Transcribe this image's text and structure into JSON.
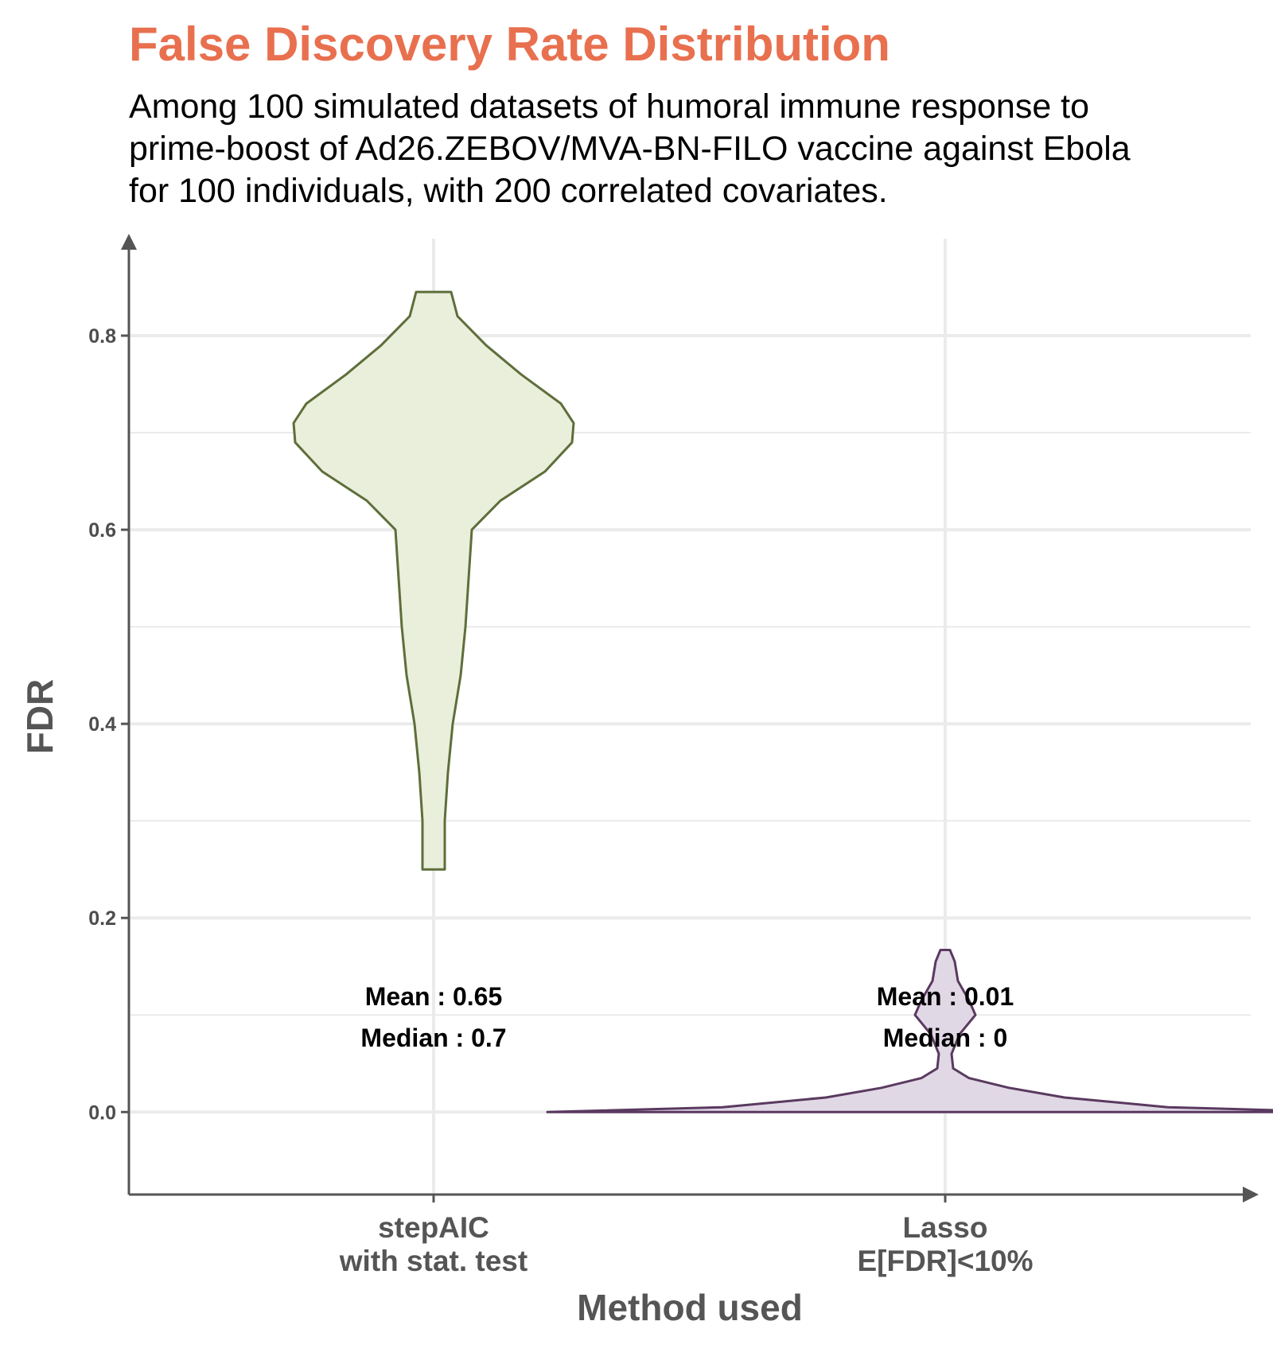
{
  "chart_data": {
    "type": "violin",
    "title": "False Discovery Rate Distribution",
    "subtitle_lines": [
      "Among 100 simulated datasets of humoral immune response to",
      "prime-boost of Ad26.ZEBOV/MVA-BN-FILO vaccine against Ebola",
      "for 100 individuals, with 200 correlated covariates."
    ],
    "xlabel": "Method used",
    "ylabel": "FDR",
    "ylim": [
      -0.085,
      0.9
    ],
    "yticks": [
      0.0,
      0.2,
      0.4,
      0.6,
      0.8
    ],
    "ytick_labels": [
      "0.0",
      "0.2",
      "0.4",
      "0.6",
      "0.8"
    ],
    "grid": true,
    "categories": [
      {
        "lines": [
          "stepAIC",
          "with stat. test"
        ]
      },
      {
        "lines": [
          "Lasso",
          "E[FDR]<10%"
        ]
      }
    ],
    "series": [
      {
        "fill": "#EAEFDC",
        "stroke": "#5E6E3A",
        "y_min": 0.25,
        "y_max": 0.845,
        "mean": 0.65,
        "median": 0.7,
        "mean_label": "Mean : 0.65",
        "median_label": "Median : 0.7",
        "profile": [
          [
            0.25,
            0.007
          ],
          [
            0.3,
            0.007
          ],
          [
            0.35,
            0.009
          ],
          [
            0.4,
            0.012
          ],
          [
            0.45,
            0.017
          ],
          [
            0.5,
            0.02
          ],
          [
            0.55,
            0.022
          ],
          [
            0.6,
            0.024
          ],
          [
            0.63,
            0.042
          ],
          [
            0.66,
            0.07
          ],
          [
            0.69,
            0.087
          ],
          [
            0.71,
            0.088
          ],
          [
            0.73,
            0.08
          ],
          [
            0.76,
            0.055
          ],
          [
            0.79,
            0.033
          ],
          [
            0.82,
            0.015
          ],
          [
            0.845,
            0.011
          ]
        ]
      },
      {
        "fill": "#E1D8E6",
        "stroke": "#5A3A60",
        "y_min": 0.0,
        "y_max": 0.167,
        "mean": 0.01,
        "median": 0.0,
        "mean_label": "Mean : 0.01",
        "median_label": "Median : 0",
        "profile": [
          [
            0.0,
            0.25
          ],
          [
            0.005,
            0.14
          ],
          [
            0.015,
            0.075
          ],
          [
            0.025,
            0.04
          ],
          [
            0.035,
            0.015
          ],
          [
            0.045,
            0.005
          ],
          [
            0.06,
            0.004
          ],
          [
            0.08,
            0.009
          ],
          [
            0.1,
            0.019
          ],
          [
            0.115,
            0.015
          ],
          [
            0.135,
            0.008
          ],
          [
            0.155,
            0.006
          ],
          [
            0.167,
            0.003
          ]
        ]
      }
    ],
    "colors": {
      "title": "#E8704F",
      "grid": "#EBEBEB",
      "axis": "#555555"
    }
  }
}
